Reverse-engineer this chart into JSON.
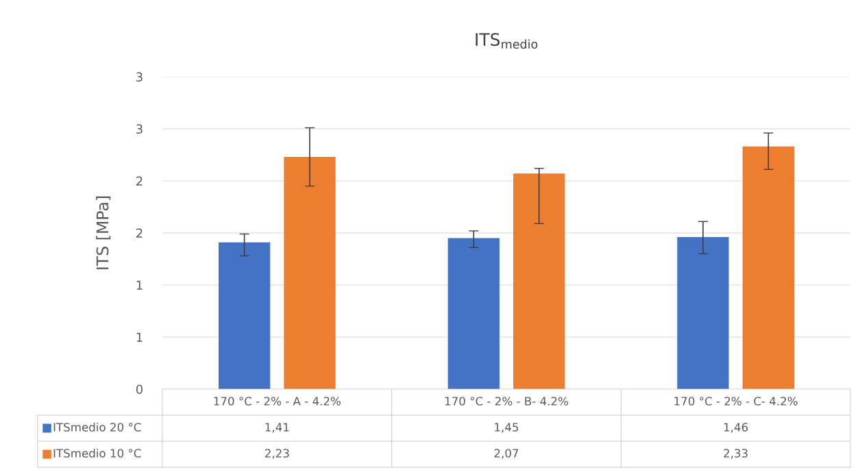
{
  "chart_data": {
    "type": "bar",
    "title": "ITS$_{medio}$",
    "ylabel": "ITS [MPa]",
    "categories": [
      "170 °C - 2% - A - 4.2%",
      "170 °C - 2% - B- 4.2%",
      "170 °C - 2% - C- 4.2%"
    ],
    "series": [
      {
        "name": "ITSmedio 20 °C",
        "color": "#4472c4",
        "values": [
          1.41,
          1.45,
          1.46
        ],
        "value_labels": [
          "1,41",
          "1,45",
          "1,46"
        ],
        "errors": [
          [
            1.28,
            1.49
          ],
          [
            1.36,
            1.52
          ],
          [
            1.3,
            1.61
          ]
        ]
      },
      {
        "name": "ITSmedio 10 °C",
        "color": "#ed7d31",
        "values": [
          2.23,
          2.07,
          2.33
        ],
        "value_labels": [
          "2,23",
          "2,07",
          "2,33"
        ],
        "errors": [
          [
            1.95,
            2.51
          ],
          [
            1.59,
            2.12
          ],
          [
            2.11,
            2.46
          ]
        ]
      }
    ],
    "ylim": [
      0,
      3
    ],
    "yticks": [
      0,
      {
        "value": 0.5,
        "label": "1"
      },
      {
        "value": 1,
        "label": "1"
      },
      {
        "value": 1.5,
        "label": "2"
      },
      {
        "value": 2,
        "label": "2"
      },
      {
        "value": 2.5,
        "label": "3"
      },
      {
        "value": 3,
        "label": "3"
      }
    ],
    "grid": "y",
    "legend": "bottom"
  }
}
